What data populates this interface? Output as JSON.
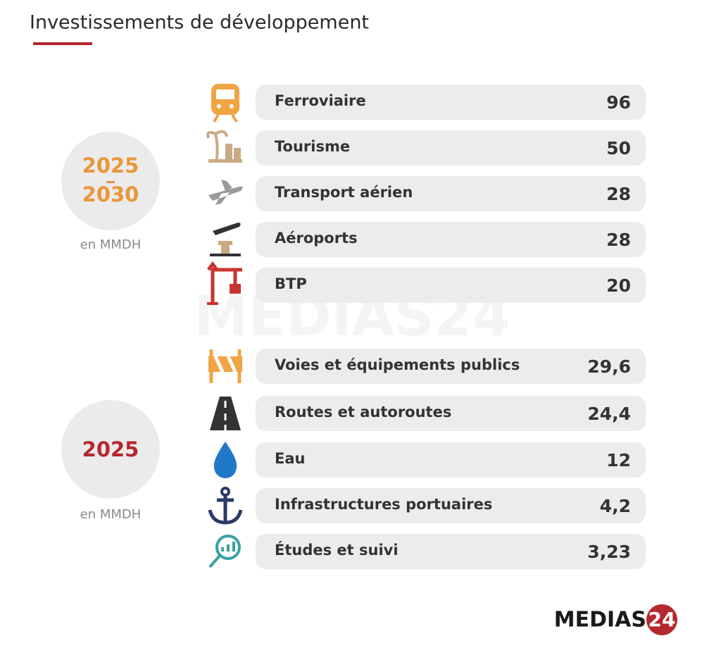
{
  "header": {
    "title": "Investissements de développement"
  },
  "groups": [
    {
      "period": [
        "2025",
        "2030"
      ],
      "unit": "en MMDH",
      "items": [
        {
          "label": "Ferroviaire",
          "value": "96"
        },
        {
          "label": "Tourisme",
          "value": "50"
        },
        {
          "label": "Transport aérien",
          "value": "28"
        },
        {
          "label": "Aéroports",
          "value": "28"
        },
        {
          "label": "BTP",
          "value": "20"
        }
      ]
    },
    {
      "period": [
        "2025"
      ],
      "unit": "en MMDH",
      "items": [
        {
          "label": "Voies et équipements publics",
          "value": "29,6"
        },
        {
          "label": "Routes et autoroutes",
          "value": "24,4"
        },
        {
          "label": "Eau",
          "value": "12"
        },
        {
          "label": "Infrastructures portuaires",
          "value": "4,2"
        },
        {
          "label": "Études et suivi",
          "value": "3,23"
        }
      ]
    }
  ],
  "logo": {
    "text": "MEDIAS",
    "badge": "24"
  }
}
